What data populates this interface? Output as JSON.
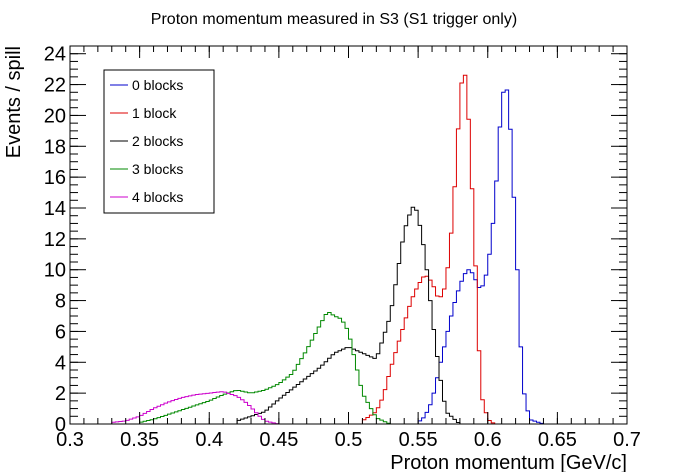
{
  "chart_data": {
    "type": "line",
    "title": "Proton momentum measured in S3 (S1 trigger only)",
    "xlabel": "Proton momentum [GeV/c]",
    "ylabel": "Events / spill",
    "xlim": [
      0.3,
      0.7
    ],
    "ylim": [
      0,
      24.5
    ],
    "x_ticks": [
      "0.3",
      "0.35",
      "0.4",
      "0.45",
      "0.5",
      "0.55",
      "0.6",
      "0.65",
      "0.7"
    ],
    "y_ticks": [
      "0",
      "2",
      "4",
      "6",
      "8",
      "10",
      "12",
      "14",
      "16",
      "18",
      "20",
      "22",
      "24"
    ],
    "bin_width": 0.0025,
    "legend_position": "top-left",
    "grid": false,
    "series": [
      {
        "name": "0 blocks",
        "color": "#0000cc",
        "x": [
          0.55,
          0.555,
          0.56,
          0.565,
          0.57,
          0.575,
          0.58,
          0.585,
          0.5875,
          0.59,
          0.595,
          0.6,
          0.605,
          0.61,
          0.6125,
          0.615,
          0.62,
          0.625,
          0.63,
          0.64
        ],
        "y": [
          0.1,
          0.5,
          1.5,
          3.5,
          5.5,
          7.5,
          9.0,
          10.0,
          10.0,
          9.6,
          8.6,
          10.0,
          14.0,
          21.0,
          22.0,
          21.3,
          12.5,
          2.5,
          0.3,
          0.0
        ]
      },
      {
        "name": "1 block",
        "color": "#dd0000",
        "x": [
          0.51,
          0.52,
          0.525,
          0.53,
          0.535,
          0.54,
          0.545,
          0.55,
          0.555,
          0.56,
          0.565,
          0.57,
          0.575,
          0.58,
          0.5825,
          0.585,
          0.59,
          0.595,
          0.6,
          0.605
        ],
        "y": [
          0.2,
          0.8,
          1.8,
          3.5,
          5.0,
          6.5,
          8.0,
          9.0,
          9.7,
          9.2,
          8.0,
          9.0,
          13.5,
          21.0,
          23.2,
          22.0,
          13.0,
          2.0,
          0.3,
          0.0
        ]
      },
      {
        "name": "2 blocks",
        "color": "#000000",
        "x": [
          0.42,
          0.44,
          0.45,
          0.46,
          0.47,
          0.48,
          0.49,
          0.5,
          0.51,
          0.52,
          0.53,
          0.535,
          0.54,
          0.545,
          0.5475,
          0.55,
          0.555,
          0.56,
          0.565,
          0.57,
          0.58
        ],
        "y": [
          0.2,
          0.8,
          1.6,
          2.3,
          3.0,
          3.7,
          4.6,
          5.0,
          4.6,
          4.2,
          7.0,
          9.7,
          12.5,
          13.9,
          14.2,
          13.5,
          11.0,
          7.0,
          3.5,
          0.8,
          0.0
        ]
      },
      {
        "name": "3 blocks",
        "color": "#008800",
        "x": [
          0.35,
          0.36,
          0.37,
          0.38,
          0.39,
          0.4,
          0.41,
          0.42,
          0.43,
          0.44,
          0.45,
          0.46,
          0.47,
          0.48,
          0.485,
          0.49,
          0.495,
          0.5,
          0.505,
          0.51,
          0.52,
          0.53
        ],
        "y": [
          0.1,
          0.3,
          0.6,
          0.9,
          1.2,
          1.5,
          1.9,
          2.2,
          2.0,
          2.2,
          2.6,
          3.3,
          4.8,
          6.5,
          7.3,
          7.0,
          6.8,
          6.0,
          4.0,
          2.0,
          0.4,
          0.0
        ]
      },
      {
        "name": "4 blocks",
        "color": "#cc00cc",
        "x": [
          0.33,
          0.34,
          0.35,
          0.36,
          0.37,
          0.38,
          0.39,
          0.4,
          0.41,
          0.42,
          0.425,
          0.43,
          0.435,
          0.44,
          0.45
        ],
        "y": [
          0.1,
          0.2,
          0.5,
          1.0,
          1.4,
          1.7,
          1.9,
          2.0,
          2.1,
          1.8,
          1.5,
          1.1,
          0.6,
          0.2,
          0.0
        ]
      }
    ]
  }
}
